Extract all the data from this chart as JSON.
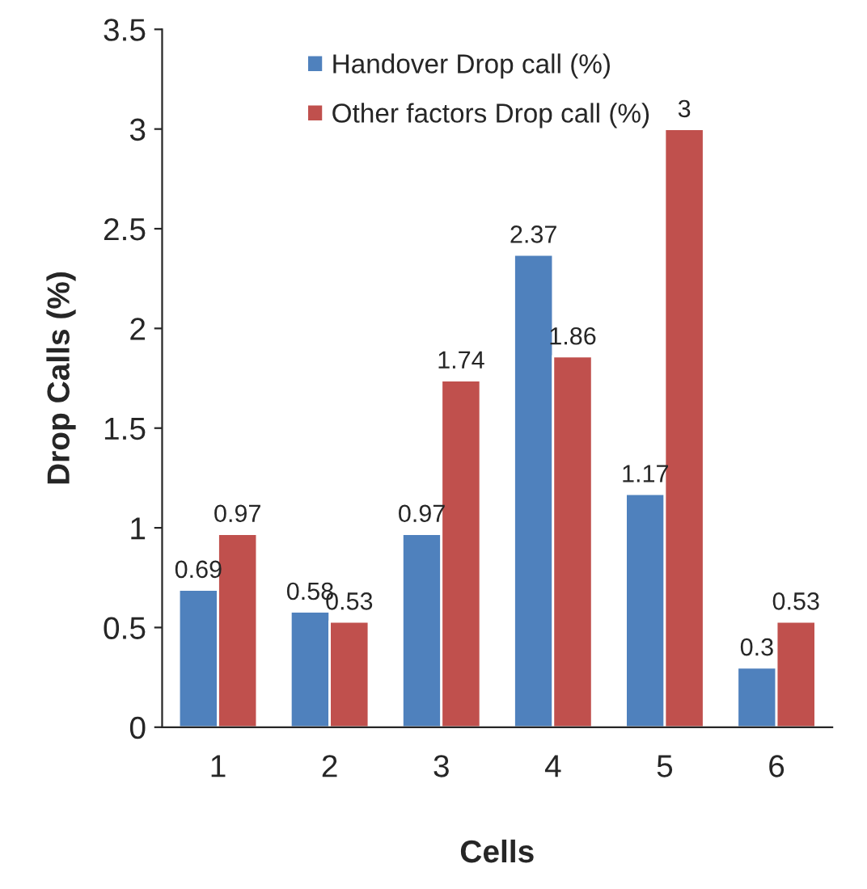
{
  "chart_data": {
    "type": "bar",
    "xlabel": "Cells",
    "ylabel": "Drop Calls (%)",
    "categories": [
      "1",
      "2",
      "3",
      "4",
      "5",
      "6"
    ],
    "series": [
      {
        "name": "Handover Drop call (%)",
        "color": "#4f81bd",
        "values": [
          0.69,
          0.58,
          0.97,
          2.37,
          1.17,
          0.3
        ]
      },
      {
        "name": "Other factors Drop call (%)",
        "color": "#c0504d",
        "values": [
          0.97,
          0.53,
          1.74,
          1.86,
          3,
          0.53
        ]
      }
    ],
    "ylim": [
      0,
      3.5
    ],
    "yticks": [
      0,
      0.5,
      1,
      1.5,
      2,
      2.5,
      3,
      3.5
    ],
    "data_labels": true,
    "legend": "top left",
    "grid": false
  }
}
